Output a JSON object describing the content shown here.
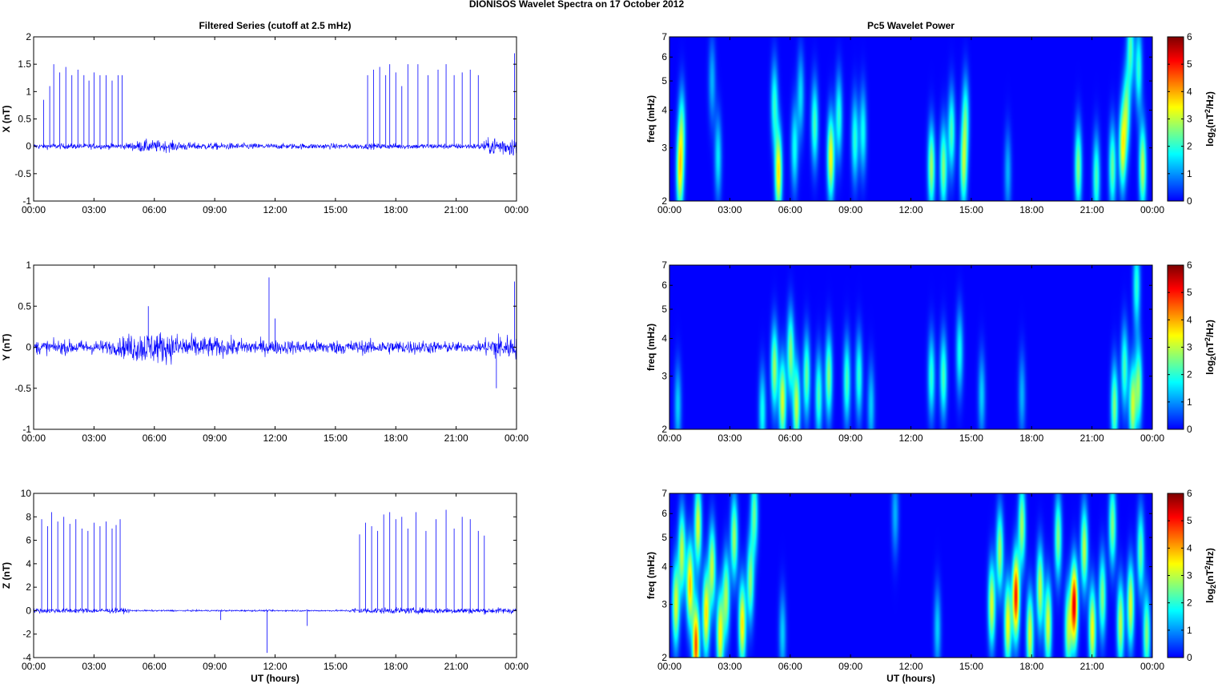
{
  "figure_title": "DIONISOS Wavelet Spectra on 17 October   2012",
  "chart_data": [
    {
      "type": "line",
      "title": "Filtered Series (cutoff at 2.5 mHz)",
      "ylabel": "X (nT)",
      "xlabel": "",
      "xlim": [
        0,
        24
      ],
      "ylim": [
        -1,
        2
      ],
      "yticks": [
        "-1",
        "-0.5",
        "0",
        "0.5",
        "1",
        "1.5",
        "2"
      ],
      "xticks": [
        "00:00",
        "03:00",
        "06:00",
        "09:00",
        "12:00",
        "15:00",
        "18:00",
        "21:00",
        "00:00"
      ],
      "line_color": "#0000ff",
      "noise_profile": [
        [
          0,
          0.06
        ],
        [
          4.5,
          0.06
        ],
        [
          5.5,
          0.14
        ],
        [
          6.5,
          0.12
        ],
        [
          8,
          0.08
        ],
        [
          12,
          0.06
        ],
        [
          16,
          0.06
        ],
        [
          19,
          0.06
        ],
        [
          22,
          0.06
        ],
        [
          23,
          0.22
        ],
        [
          24,
          0.2
        ]
      ],
      "spikes": [
        {
          "x": 0.5,
          "y": 0.85
        },
        {
          "x": 0.8,
          "y": 1.1
        },
        {
          "x": 1.0,
          "y": 1.5
        },
        {
          "x": 1.3,
          "y": 1.35
        },
        {
          "x": 1.6,
          "y": 1.45
        },
        {
          "x": 1.9,
          "y": 1.3
        },
        {
          "x": 2.2,
          "y": 1.4
        },
        {
          "x": 2.5,
          "y": 1.3
        },
        {
          "x": 2.75,
          "y": 1.2
        },
        {
          "x": 3.0,
          "y": 1.35
        },
        {
          "x": 3.3,
          "y": 1.3
        },
        {
          "x": 3.6,
          "y": 1.3
        },
        {
          "x": 3.9,
          "y": 1.2
        },
        {
          "x": 4.2,
          "y": 1.3
        },
        {
          "x": 4.4,
          "y": 1.3
        },
        {
          "x": 16.6,
          "y": 1.3
        },
        {
          "x": 16.9,
          "y": 1.4
        },
        {
          "x": 17.2,
          "y": 1.45
        },
        {
          "x": 17.5,
          "y": 1.3
        },
        {
          "x": 17.7,
          "y": 1.5
        },
        {
          "x": 18.0,
          "y": 1.35
        },
        {
          "x": 18.3,
          "y": 1.1
        },
        {
          "x": 18.6,
          "y": 1.5
        },
        {
          "x": 19.1,
          "y": 1.5
        },
        {
          "x": 19.6,
          "y": 1.3
        },
        {
          "x": 20.1,
          "y": 1.4
        },
        {
          "x": 20.5,
          "y": 1.5
        },
        {
          "x": 20.9,
          "y": 1.3
        },
        {
          "x": 21.3,
          "y": 1.35
        },
        {
          "x": 21.7,
          "y": 1.4
        },
        {
          "x": 22.1,
          "y": 1.3
        },
        {
          "x": 23.9,
          "y": 1.7
        }
      ]
    },
    {
      "type": "heatmap",
      "title": "Pc5 Wavelet Power",
      "ylabel": "freq (mHz)",
      "xlabel": "",
      "xlim": [
        0,
        24
      ],
      "ylim": [
        2,
        7
      ],
      "yscale": "log",
      "yticks": [
        "2",
        "3",
        "4",
        "5",
        "6",
        "7"
      ],
      "xticks": [
        "00:00",
        "03:00",
        "06:00",
        "09:00",
        "12:00",
        "15:00",
        "18:00",
        "21:00",
        "00:00"
      ],
      "colorbar_label": "log2(nT2/Hz)",
      "colorbar_ticks": [
        "0",
        "1",
        "2",
        "3",
        "4",
        "5",
        "6"
      ],
      "clim": [
        0,
        6
      ],
      "blobs": [
        {
          "t": 0.5,
          "f": 2.5,
          "p": 3.2
        },
        {
          "t": 0.6,
          "f": 3.5,
          "p": 2.0
        },
        {
          "t": 2.4,
          "f": 2.8,
          "p": 1.6
        },
        {
          "t": 2.1,
          "f": 5.0,
          "p": 1.2
        },
        {
          "t": 5.4,
          "f": 2.5,
          "p": 3.6
        },
        {
          "t": 5.2,
          "f": 4.2,
          "p": 2.0
        },
        {
          "t": 6.2,
          "f": 3.0,
          "p": 1.8
        },
        {
          "t": 6.5,
          "f": 4.5,
          "p": 1.5
        },
        {
          "t": 7.2,
          "f": 3.6,
          "p": 2.2
        },
        {
          "t": 8.0,
          "f": 2.8,
          "p": 3.4
        },
        {
          "t": 8.4,
          "f": 3.8,
          "p": 2.0
        },
        {
          "t": 9.2,
          "f": 3.2,
          "p": 2.0
        },
        {
          "t": 9.6,
          "f": 3.4,
          "p": 1.8
        },
        {
          "t": 13.0,
          "f": 2.6,
          "p": 2.8
        },
        {
          "t": 13.6,
          "f": 2.6,
          "p": 2.6
        },
        {
          "t": 14.0,
          "f": 3.4,
          "p": 2.2
        },
        {
          "t": 14.6,
          "f": 2.6,
          "p": 2.6
        },
        {
          "t": 14.7,
          "f": 3.8,
          "p": 2.0
        },
        {
          "t": 16.8,
          "f": 2.5,
          "p": 1.2
        },
        {
          "t": 20.3,
          "f": 2.6,
          "p": 2.6
        },
        {
          "t": 21.2,
          "f": 2.4,
          "p": 2.2
        },
        {
          "t": 22.0,
          "f": 2.6,
          "p": 2.4
        },
        {
          "t": 22.5,
          "f": 3.0,
          "p": 3.2
        },
        {
          "t": 22.7,
          "f": 4.0,
          "p": 2.4
        },
        {
          "t": 23.5,
          "f": 2.6,
          "p": 3.0
        },
        {
          "t": 23.3,
          "f": 5.5,
          "p": 2.0
        },
        {
          "t": 22.9,
          "f": 6.5,
          "p": 2.2
        }
      ]
    },
    {
      "type": "line",
      "title": "",
      "ylabel": "Y (nT)",
      "xlabel": "",
      "xlim": [
        0,
        24
      ],
      "ylim": [
        -1,
        1
      ],
      "yticks": [
        "-1",
        "-0.5",
        "0",
        "0.5",
        "1"
      ],
      "xticks": [
        "00:00",
        "03:00",
        "06:00",
        "09:00",
        "12:00",
        "15:00",
        "18:00",
        "21:00",
        "00:00"
      ],
      "line_color": "#0000ff",
      "noise_profile": [
        [
          0,
          0.1
        ],
        [
          4,
          0.1
        ],
        [
          5,
          0.22
        ],
        [
          6,
          0.24
        ],
        [
          7.5,
          0.18
        ],
        [
          9,
          0.14
        ],
        [
          12,
          0.1
        ],
        [
          15,
          0.1
        ],
        [
          19,
          0.1
        ],
        [
          22,
          0.06
        ],
        [
          23,
          0.2
        ],
        [
          24,
          0.16
        ]
      ],
      "spikes": [
        {
          "x": 11.7,
          "y": 0.85
        },
        {
          "x": 12.0,
          "y": 0.35
        },
        {
          "x": 23.9,
          "y": 0.8
        },
        {
          "x": 23.0,
          "y": -0.5
        },
        {
          "x": 5.7,
          "y": 0.5
        }
      ]
    },
    {
      "type": "heatmap",
      "title": "",
      "ylabel": "freq (mHz)",
      "xlabel": "",
      "xlim": [
        0,
        24
      ],
      "ylim": [
        2,
        7
      ],
      "yscale": "log",
      "yticks": [
        "2",
        "3",
        "4",
        "5",
        "6",
        "7"
      ],
      "xticks": [
        "00:00",
        "03:00",
        "06:00",
        "09:00",
        "12:00",
        "15:00",
        "18:00",
        "21:00",
        "00:00"
      ],
      "colorbar_label": "log2(nT2/Hz)",
      "colorbar_ticks": [
        "0",
        "1",
        "2",
        "3",
        "4",
        "5",
        "6"
      ],
      "clim": [
        0,
        6
      ],
      "blobs": [
        {
          "t": 0.4,
          "f": 2.4,
          "p": 1.4
        },
        {
          "t": 4.6,
          "f": 2.3,
          "p": 1.8
        },
        {
          "t": 5.2,
          "f": 3.2,
          "p": 2.8
        },
        {
          "t": 5.6,
          "f": 2.5,
          "p": 3.2
        },
        {
          "t": 6.0,
          "f": 3.6,
          "p": 2.6
        },
        {
          "t": 6.3,
          "f": 2.4,
          "p": 3.0
        },
        {
          "t": 6.8,
          "f": 3.0,
          "p": 2.4
        },
        {
          "t": 7.4,
          "f": 2.6,
          "p": 2.2
        },
        {
          "t": 7.9,
          "f": 3.0,
          "p": 2.6
        },
        {
          "t": 8.8,
          "f": 2.9,
          "p": 2.2
        },
        {
          "t": 9.4,
          "f": 3.0,
          "p": 2.0
        },
        {
          "t": 10.0,
          "f": 2.4,
          "p": 1.4
        },
        {
          "t": 13.0,
          "f": 3.0,
          "p": 2.0
        },
        {
          "t": 13.6,
          "f": 3.0,
          "p": 2.2
        },
        {
          "t": 14.4,
          "f": 3.6,
          "p": 1.8
        },
        {
          "t": 15.5,
          "f": 2.6,
          "p": 1.4
        },
        {
          "t": 17.5,
          "f": 2.6,
          "p": 1.2
        },
        {
          "t": 22.1,
          "f": 2.4,
          "p": 2.6
        },
        {
          "t": 22.6,
          "f": 3.2,
          "p": 2.2
        },
        {
          "t": 23.0,
          "f": 2.4,
          "p": 3.0
        },
        {
          "t": 23.3,
          "f": 2.8,
          "p": 2.6
        },
        {
          "t": 23.2,
          "f": 6.0,
          "p": 2.0
        }
      ]
    },
    {
      "type": "line",
      "title": "",
      "ylabel": "Z (nT)",
      "xlabel": "UT (hours)",
      "xlim": [
        0,
        24
      ],
      "ylim": [
        -4,
        10
      ],
      "yticks": [
        "-4",
        "-2",
        "0",
        "2",
        "4",
        "6",
        "8",
        "10"
      ],
      "xticks": [
        "00:00",
        "03:00",
        "06:00",
        "09:00",
        "12:00",
        "15:00",
        "18:00",
        "21:00",
        "00:00"
      ],
      "line_color": "#0000ff",
      "noise_profile": [
        [
          0,
          0.25
        ],
        [
          4.5,
          0.25
        ],
        [
          5,
          0.08
        ],
        [
          15.5,
          0.08
        ],
        [
          16,
          0.3
        ],
        [
          24,
          0.3
        ]
      ],
      "spikes": [
        {
          "x": 0.4,
          "y": 7.8
        },
        {
          "x": 0.7,
          "y": 7.2
        },
        {
          "x": 0.9,
          "y": 8.4
        },
        {
          "x": 1.2,
          "y": 7.6
        },
        {
          "x": 1.5,
          "y": 8.0
        },
        {
          "x": 1.8,
          "y": 7.4
        },
        {
          "x": 2.1,
          "y": 7.8
        },
        {
          "x": 2.4,
          "y": 7.0
        },
        {
          "x": 2.7,
          "y": 6.8
        },
        {
          "x": 3.0,
          "y": 7.5
        },
        {
          "x": 3.3,
          "y": 7.2
        },
        {
          "x": 3.6,
          "y": 7.6
        },
        {
          "x": 3.9,
          "y": 7.0
        },
        {
          "x": 4.1,
          "y": 7.3
        },
        {
          "x": 4.3,
          "y": 7.8
        },
        {
          "x": 9.3,
          "y": -0.8
        },
        {
          "x": 11.6,
          "y": -3.6
        },
        {
          "x": 13.6,
          "y": -1.3
        },
        {
          "x": 16.2,
          "y": 6.5
        },
        {
          "x": 16.5,
          "y": 7.5
        },
        {
          "x": 16.8,
          "y": 7.2
        },
        {
          "x": 17.1,
          "y": 6.8
        },
        {
          "x": 17.4,
          "y": 8.2
        },
        {
          "x": 17.7,
          "y": 8.4
        },
        {
          "x": 18.0,
          "y": 7.8
        },
        {
          "x": 18.3,
          "y": 8.0
        },
        {
          "x": 18.6,
          "y": 7.0
        },
        {
          "x": 19.0,
          "y": 8.4
        },
        {
          "x": 19.5,
          "y": 6.8
        },
        {
          "x": 20.0,
          "y": 7.8
        },
        {
          "x": 20.5,
          "y": 8.6
        },
        {
          "x": 20.9,
          "y": 7.0
        },
        {
          "x": 21.3,
          "y": 8.0
        },
        {
          "x": 21.7,
          "y": 7.8
        },
        {
          "x": 22.1,
          "y": 6.8
        },
        {
          "x": 22.4,
          "y": 6.4
        }
      ]
    },
    {
      "type": "heatmap",
      "title": "",
      "ylabel": "freq (mHz)",
      "xlabel": "UT (hours)",
      "xlim": [
        0,
        24
      ],
      "ylim": [
        2,
        7
      ],
      "yscale": "log",
      "yticks": [
        "2",
        "3",
        "4",
        "5",
        "6",
        "7"
      ],
      "xticks": [
        "00:00",
        "03:00",
        "06:00",
        "09:00",
        "12:00",
        "15:00",
        "18:00",
        "21:00",
        "00:00"
      ],
      "colorbar_label": "log2(nT2/Hz)",
      "colorbar_ticks": [
        "0",
        "1",
        "2",
        "3",
        "4",
        "5",
        "6"
      ],
      "clim": [
        0,
        6
      ],
      "blobs": [
        {
          "t": 0.3,
          "f": 3.0,
          "p": 3.2
        },
        {
          "t": 0.6,
          "f": 4.5,
          "p": 3.0
        },
        {
          "t": 1.0,
          "f": 3.5,
          "p": 3.8
        },
        {
          "t": 1.3,
          "f": 2.2,
          "p": 4.6
        },
        {
          "t": 1.4,
          "f": 5.5,
          "p": 3.2
        },
        {
          "t": 1.8,
          "f": 2.8,
          "p": 3.6
        },
        {
          "t": 2.1,
          "f": 4.0,
          "p": 3.0
        },
        {
          "t": 2.5,
          "f": 2.4,
          "p": 3.4
        },
        {
          "t": 2.8,
          "f": 3.2,
          "p": 2.8
        },
        {
          "t": 3.2,
          "f": 5.0,
          "p": 2.8
        },
        {
          "t": 3.6,
          "f": 2.6,
          "p": 3.6
        },
        {
          "t": 4.0,
          "f": 3.6,
          "p": 2.6
        },
        {
          "t": 4.2,
          "f": 6.0,
          "p": 2.4
        },
        {
          "t": 5.6,
          "f": 2.4,
          "p": 1.4
        },
        {
          "t": 11.2,
          "f": 6.0,
          "p": 1.2
        },
        {
          "t": 13.3,
          "f": 2.5,
          "p": 1.4
        },
        {
          "t": 16.0,
          "f": 3.0,
          "p": 3.2
        },
        {
          "t": 16.4,
          "f": 4.5,
          "p": 2.8
        },
        {
          "t": 16.8,
          "f": 2.6,
          "p": 3.4
        },
        {
          "t": 17.2,
          "f": 3.2,
          "p": 5.0
        },
        {
          "t": 17.5,
          "f": 5.5,
          "p": 2.8
        },
        {
          "t": 17.9,
          "f": 2.4,
          "p": 3.2
        },
        {
          "t": 18.4,
          "f": 3.4,
          "p": 3.0
        },
        {
          "t": 18.8,
          "f": 2.6,
          "p": 3.2
        },
        {
          "t": 19.3,
          "f": 5.0,
          "p": 2.6
        },
        {
          "t": 19.8,
          "f": 2.5,
          "p": 2.8
        },
        {
          "t": 20.1,
          "f": 3.0,
          "p": 5.2
        },
        {
          "t": 20.6,
          "f": 4.6,
          "p": 3.0
        },
        {
          "t": 21.0,
          "f": 2.5,
          "p": 3.4
        },
        {
          "t": 21.5,
          "f": 3.2,
          "p": 2.6
        },
        {
          "t": 22.0,
          "f": 5.5,
          "p": 2.6
        },
        {
          "t": 22.4,
          "f": 2.6,
          "p": 3.0
        },
        {
          "t": 22.9,
          "f": 3.0,
          "p": 3.2
        },
        {
          "t": 23.4,
          "f": 4.5,
          "p": 2.4
        },
        {
          "t": 23.7,
          "f": 2.4,
          "p": 2.6
        }
      ]
    }
  ]
}
